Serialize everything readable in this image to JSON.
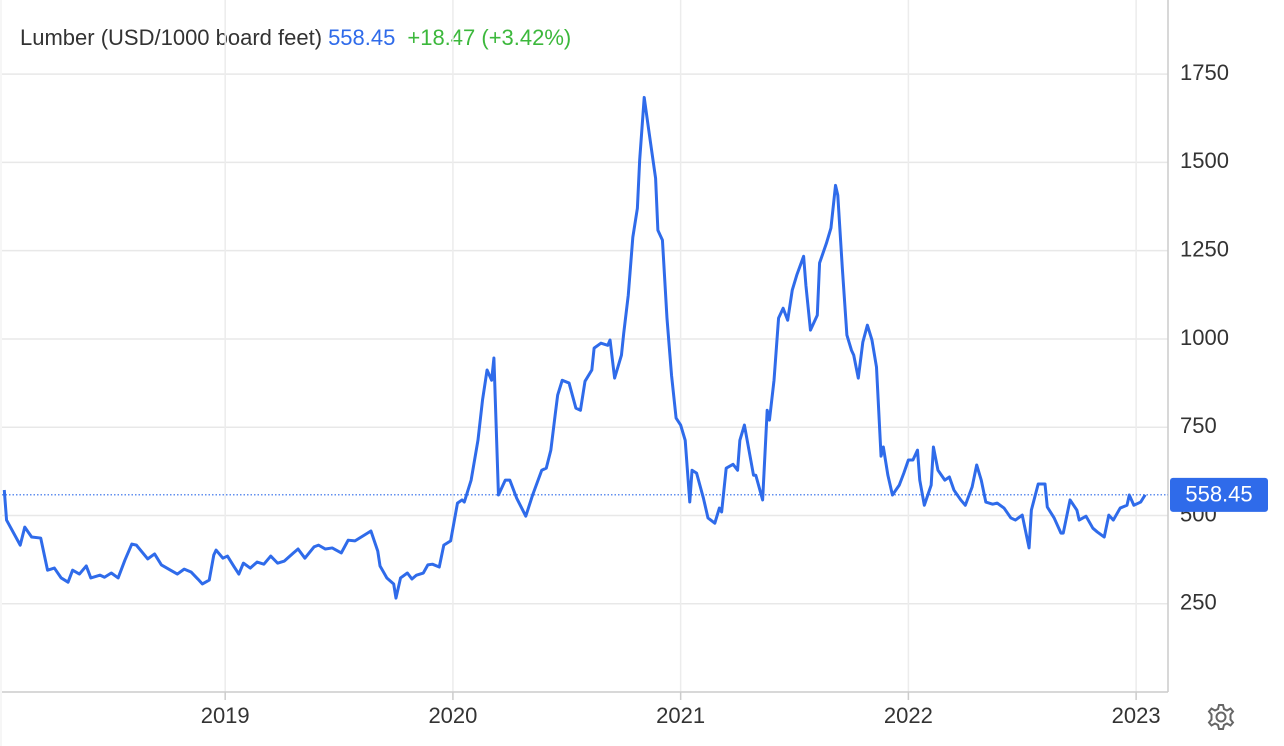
{
  "chart_data": {
    "type": "line",
    "title": "Lumber (USD/1000 board feet)",
    "price": 558.45,
    "change": "+18.47 (+3.42%)",
    "color": "#2f6bea",
    "grid": true,
    "xlim": [
      2018.02,
      2023.14
    ],
    "xticks": [
      2019,
      2020,
      2021,
      2022,
      2023
    ],
    "ylim": [
      0,
      1960
    ],
    "yticks": [
      250,
      500,
      750,
      1000,
      1250,
      1500,
      1750
    ],
    "x": [
      2018.03,
      2018.04,
      2018.1,
      2018.12,
      2018.15,
      2018.19,
      2018.22,
      2018.25,
      2018.28,
      2018.31,
      2018.33,
      2018.36,
      2018.39,
      2018.41,
      2018.45,
      2018.47,
      2018.5,
      2018.53,
      2018.56,
      2018.59,
      2018.61,
      2018.66,
      2018.69,
      2018.72,
      2018.76,
      2018.79,
      2018.82,
      2018.85,
      2018.88,
      2018.9,
      2018.93,
      2018.95,
      2018.96,
      2018.99,
      2019.01,
      2019.04,
      2019.06,
      2019.08,
      2019.11,
      2019.14,
      2019.17,
      2019.2,
      2019.23,
      2019.26,
      2019.3,
      2019.32,
      2019.35,
      2019.39,
      2019.41,
      2019.44,
      2019.47,
      2019.51,
      2019.54,
      2019.57,
      2019.61,
      2019.64,
      2019.67,
      2019.68,
      2019.71,
      2019.74,
      2019.75,
      2019.77,
      2019.8,
      2019.82,
      2019.84,
      2019.87,
      2019.89,
      2019.91,
      2019.94,
      2019.96,
      2019.99,
      2020.02,
      2020.04,
      2020.05,
      2020.08,
      2020.11,
      2020.13,
      2020.15,
      2020.17,
      2020.18,
      2020.2,
      2020.23,
      2020.25,
      2020.28,
      2020.32,
      2020.35,
      2020.39,
      2020.41,
      2020.43,
      2020.45,
      2020.46,
      2020.48,
      2020.51,
      2020.54,
      2020.56,
      2020.58,
      2020.61,
      2020.62,
      2020.65,
      2020.68,
      2020.69,
      2020.71,
      2020.74,
      2020.75,
      2020.77,
      2020.79,
      2020.81,
      2020.82,
      2020.84,
      2020.86,
      2020.89,
      2020.9,
      2020.92,
      2020.94,
      2020.96,
      2020.98,
      2021.0,
      2021.02,
      2021.04,
      2021.05,
      2021.07,
      2021.1,
      2021.12,
      2021.15,
      2021.17,
      2021.18,
      2021.2,
      2021.23,
      2021.25,
      2021.26,
      2021.28,
      2021.3,
      2021.32,
      2021.33,
      2021.36,
      2021.38,
      2021.39,
      2021.41,
      2021.43,
      2021.45,
      2021.47,
      2021.49,
      2021.51,
      2021.54,
      2021.55,
      2021.57,
      2021.6,
      2021.61,
      2021.64,
      2021.66,
      2021.68,
      2021.69,
      2021.71,
      2021.73,
      2021.75,
      2021.76,
      2021.78,
      2021.8,
      2021.82,
      2021.84,
      2021.86,
      2021.88,
      2021.89,
      2021.91,
      2021.93,
      2021.96,
      2021.98,
      2022.0,
      2022.02,
      2022.04,
      2022.05,
      2022.07,
      2022.1,
      2022.11,
      2022.13,
      2022.16,
      2022.18,
      2022.2,
      2022.23,
      2022.25,
      2022.28,
      2022.3,
      2022.32,
      2022.34,
      2022.37,
      2022.39,
      2022.42,
      2022.45,
      2022.47,
      2022.5,
      2022.53,
      2022.54,
      2022.57,
      2022.6,
      2022.61,
      2022.64,
      2022.67,
      2022.68,
      2022.71,
      2022.74,
      2022.75,
      2022.78,
      2022.81,
      2022.83,
      2022.86,
      2022.88,
      2022.9,
      2022.93,
      2022.96,
      2022.97,
      2022.99,
      2023.02,
      2023.04
    ],
    "values": [
      572,
      487,
      416,
      467,
      439,
      436,
      345,
      351,
      323,
      311,
      345,
      334,
      357,
      323,
      331,
      325,
      337,
      323,
      374,
      419,
      416,
      377,
      391,
      360,
      345,
      334,
      348,
      340,
      320,
      306,
      317,
      388,
      402,
      379,
      385,
      354,
      334,
      365,
      351,
      368,
      362,
      385,
      365,
      371,
      394,
      405,
      379,
      411,
      416,
      405,
      408,
      394,
      430,
      428,
      444,
      456,
      399,
      357,
      323,
      306,
      266,
      323,
      337,
      320,
      331,
      337,
      360,
      362,
      354,
      416,
      428,
      535,
      544,
      538,
      600,
      713,
      827,
      912,
      883,
      946,
      558,
      600,
      600,
      549,
      498,
      558,
      628,
      634,
      685,
      790,
      841,
      883,
      875,
      804,
      798,
      880,
      912,
      974,
      988,
      982,
      997,
      889,
      954,
      1016,
      1124,
      1288,
      1370,
      1506,
      1684,
      1591,
      1455,
      1308,
      1280,
      1059,
      897,
      776,
      756,
      713,
      538,
      628,
      620,
      549,
      493,
      478,
      521,
      510,
      634,
      645,
      628,
      713,
      756,
      685,
      614,
      614,
      544,
      798,
      770,
      883,
      1059,
      1087,
      1053,
      1138,
      1181,
      1234,
      1152,
      1025,
      1067,
      1215,
      1271,
      1314,
      1435,
      1407,
      1200,
      1011,
      968,
      954,
      889,
      991,
      1039,
      997,
      920,
      668,
      694,
      614,
      558,
      586,
      620,
      657,
      657,
      685,
      600,
      529,
      586,
      694,
      628,
      600,
      609,
      572,
      544,
      529,
      581,
      643,
      600,
      538,
      532,
      535,
      521,
      493,
      487,
      501,
      408,
      515,
      589,
      589,
      524,
      493,
      450,
      450,
      544,
      515,
      487,
      498,
      464,
      453,
      439,
      501,
      487,
      521,
      529,
      558,
      529,
      538,
      558.45
    ]
  }
}
